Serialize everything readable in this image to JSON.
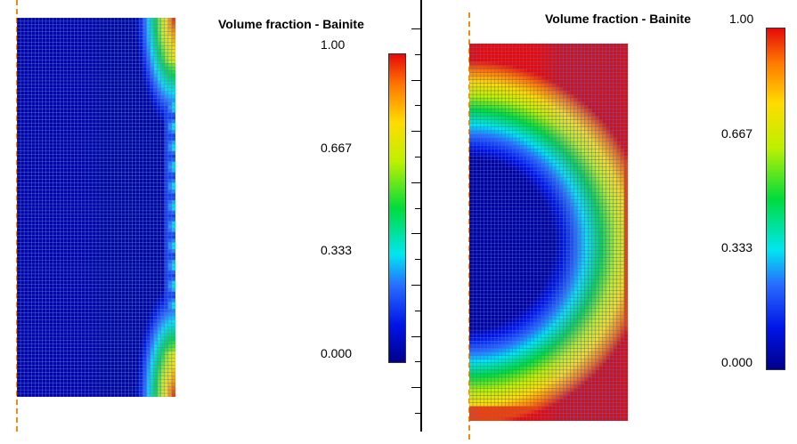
{
  "figures": [
    {
      "id": "left",
      "legend": {
        "title": "Volume fraction - Bainite",
        "ticks": [
          "1.00",
          "0.667",
          "0.333",
          "0.000"
        ],
        "min": 0.0,
        "max": 1.0
      },
      "field_description_type": "edge-hotspots"
    },
    {
      "id": "right",
      "legend": {
        "title": "Volume fraction - Bainite",
        "ticks": [
          "1.00",
          "0.667",
          "0.333",
          "0.000"
        ],
        "min": 0.0,
        "max": 1.0
      },
      "field_description_type": "radial-gradient"
    }
  ],
  "colors": {
    "low": "#0a0a8c",
    "mesh_line": "#5a78d8",
    "axis": "#ef8a14",
    "divider": "#000000"
  }
}
